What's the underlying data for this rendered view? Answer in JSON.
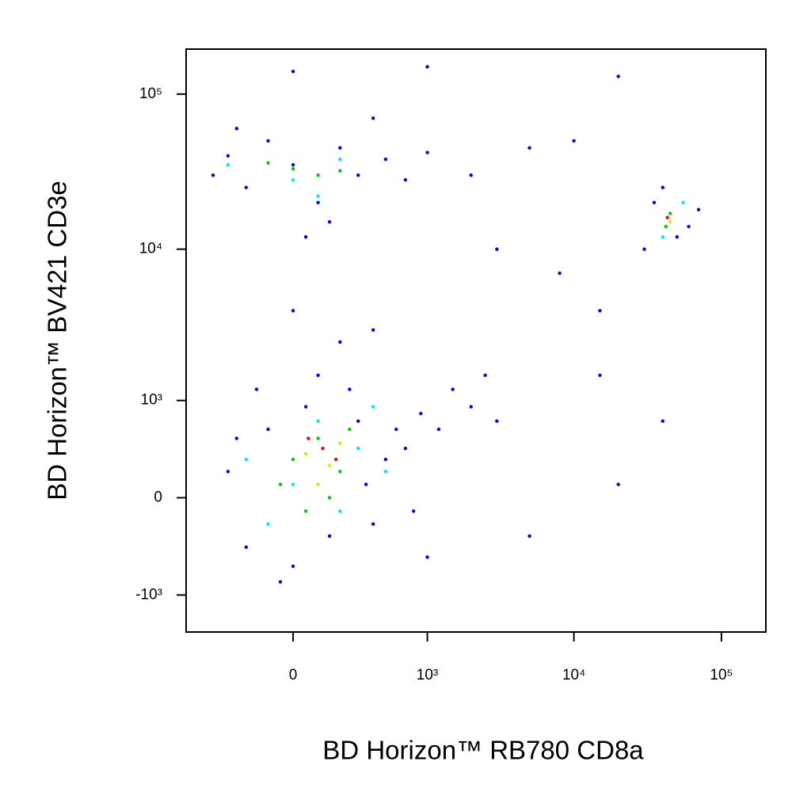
{
  "chart_data": {
    "type": "scatter",
    "scale": "biexponential",
    "x_label": "BD Horizon™ RB780 CD8a",
    "y_label": "BD Horizon™ BV421 CD3e",
    "xlim": [
      -640,
      200000
    ],
    "ylim": [
      -1800,
      195000
    ],
    "xticks": [
      0,
      {
        "value": 1000,
        "label": "10³"
      },
      {
        "value": 10000,
        "label": "10⁴"
      },
      {
        "value": 100000,
        "label": "10⁵"
      }
    ],
    "yticks": [
      {
        "value": -1000,
        "label": "-10³"
      },
      0,
      {
        "value": 1000,
        "label": "10³"
      },
      {
        "value": 10000,
        "label": "10⁴"
      },
      {
        "value": 100000,
        "label": "10⁵"
      }
    ],
    "series": [
      {
        "color": "#0000ff",
        "x": [
          -300,
          -200,
          -100,
          0,
          50,
          150,
          300,
          400,
          500,
          600,
          -250,
          250,
          100,
          -50,
          350,
          700,
          900,
          1200,
          1500,
          2000,
          2500,
          3000,
          200,
          0,
          400,
          -150,
          800,
          1000,
          -400,
          -300,
          -200,
          -100,
          0,
          100,
          200,
          300,
          500,
          700,
          1000,
          -250,
          150,
          50,
          400,
          2000,
          5000,
          10000,
          35000,
          50000,
          40000,
          60000,
          30000,
          70000,
          3000,
          8000,
          15000,
          15000,
          40000,
          20000,
          5000,
          20000,
          0,
          1000
        ],
        "y": [
          200,
          -400,
          600,
          -600,
          900,
          -300,
          700,
          -200,
          300,
          600,
          500,
          1200,
          1500,
          -800,
          100,
          400,
          800,
          600,
          1200,
          900,
          1500,
          700,
          2500,
          4000,
          3000,
          1200,
          -100,
          -500,
          30000,
          40000,
          25000,
          50000,
          35000,
          20000,
          45000,
          30000,
          38000,
          28000,
          42000,
          60000,
          15000,
          12000,
          70000,
          30000,
          45000,
          50000,
          20000,
          12000,
          25000,
          14000,
          10000,
          18000,
          10000,
          7000,
          4000,
          1500,
          700,
          100,
          -300,
          130000,
          140000,
          150000
        ]
      },
      {
        "color": "#00e5ff",
        "x": [
          -200,
          0,
          200,
          100,
          300,
          -100,
          400,
          500,
          -300,
          0,
          200,
          100,
          40000,
          55000
        ],
        "y": [
          300,
          100,
          -100,
          700,
          400,
          -200,
          900,
          200,
          35000,
          28000,
          38000,
          22000,
          12000,
          20000
        ]
      },
      {
        "color": "#00c800",
        "x": [
          0,
          100,
          200,
          -50,
          150,
          250,
          50,
          0,
          100,
          -100,
          200,
          45000,
          42000
        ],
        "y": [
          300,
          500,
          200,
          100,
          0,
          600,
          -100,
          33000,
          30000,
          36000,
          32000,
          17000,
          14000
        ]
      },
      {
        "color": "#f0e000",
        "x": [
          50,
          150,
          200,
          100,
          45000
        ],
        "y": [
          350,
          250,
          450,
          100,
          15000
        ]
      },
      {
        "color": "#ff0000",
        "x": [
          120,
          180,
          60,
          43000
        ],
        "y": [
          400,
          300,
          500,
          16000
        ]
      }
    ]
  }
}
